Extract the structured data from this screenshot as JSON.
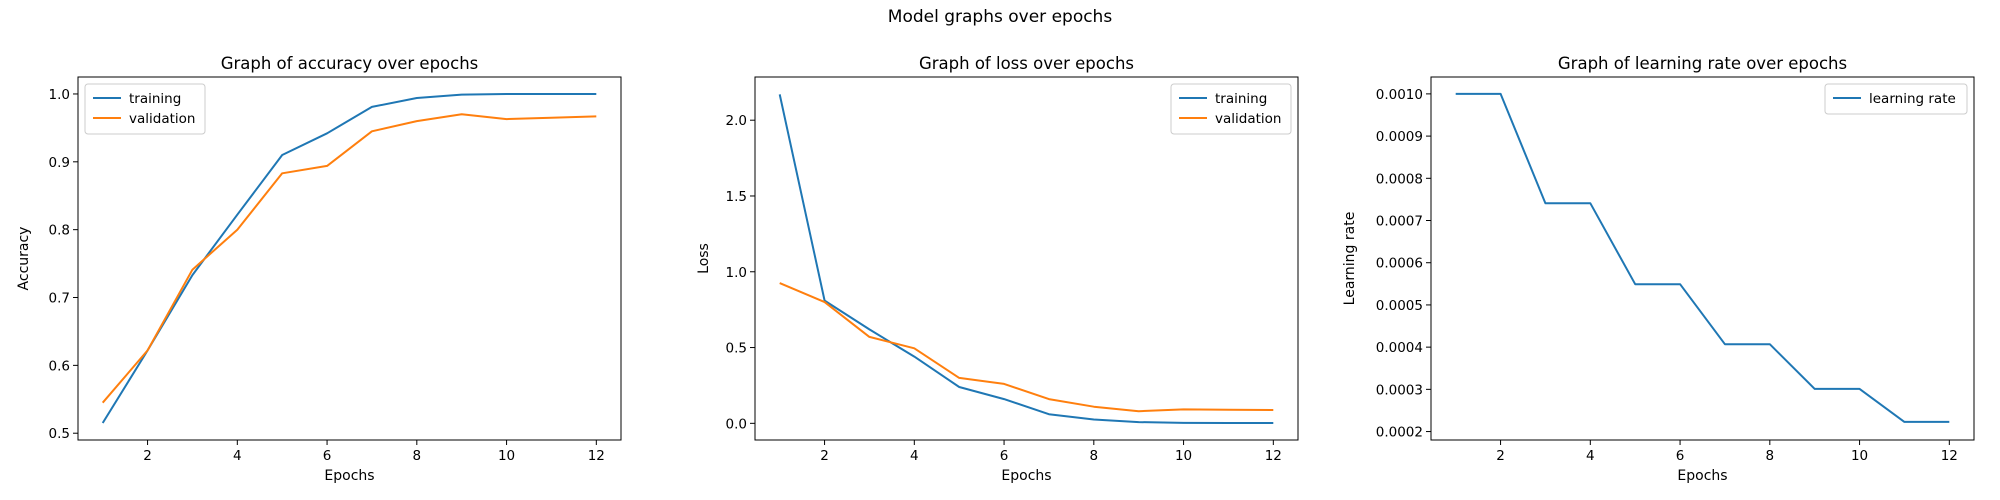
{
  "figure_title": "Model graphs over epochs",
  "colors": {
    "training": "#1f77b4",
    "validation": "#ff7f0e",
    "learning_rate": "#1f77b4"
  },
  "chart_data": [
    {
      "type": "line",
      "title": "Graph of accuracy over epochs",
      "xlabel": "Epochs",
      "ylabel": "Accuracy",
      "xlim": [
        0.45,
        12.55
      ],
      "ylim": [
        0.49,
        1.025
      ],
      "xticks": [
        2,
        4,
        6,
        8,
        10,
        12
      ],
      "yticks": [
        0.5,
        0.6,
        0.7,
        0.8,
        0.9,
        1.0
      ],
      "ytick_labels": [
        "0.5",
        "0.6",
        "0.7",
        "0.8",
        "0.9",
        "1.0"
      ],
      "legend": "top-left",
      "grid": false,
      "x": [
        1,
        2,
        3,
        4,
        5,
        6,
        7,
        8,
        9,
        10,
        11,
        12
      ],
      "series": [
        {
          "name": "training",
          "color": "#1f77b4",
          "values": [
            0.515,
            0.622,
            0.733,
            0.822,
            0.91,
            0.942,
            0.981,
            0.994,
            0.999,
            1.0,
            1.0,
            1.0
          ]
        },
        {
          "name": "validation",
          "color": "#ff7f0e",
          "values": [
            0.545,
            0.622,
            0.741,
            0.8,
            0.883,
            0.894,
            0.945,
            0.96,
            0.97,
            0.963,
            0.965,
            0.967
          ]
        }
      ]
    },
    {
      "type": "line",
      "title": "Graph of loss over epochs",
      "xlabel": "Epochs",
      "ylabel": "Loss",
      "xlim": [
        0.45,
        12.55
      ],
      "ylim": [
        -0.11,
        2.285
      ],
      "xticks": [
        2,
        4,
        6,
        8,
        10,
        12
      ],
      "yticks": [
        0.0,
        0.5,
        1.0,
        1.5,
        2.0
      ],
      "ytick_labels": [
        "0.0",
        "0.5",
        "1.0",
        "1.5",
        "2.0"
      ],
      "legend": "top-right",
      "grid": false,
      "x": [
        1,
        2,
        3,
        4,
        5,
        6,
        7,
        8,
        9,
        10,
        11,
        12
      ],
      "series": [
        {
          "name": "training",
          "color": "#1f77b4",
          "values": [
            2.17,
            0.81,
            0.62,
            0.44,
            0.24,
            0.16,
            0.06,
            0.025,
            0.008,
            0.003,
            0.002,
            0.002
          ]
        },
        {
          "name": "validation",
          "color": "#ff7f0e",
          "values": [
            0.925,
            0.8,
            0.57,
            0.495,
            0.3,
            0.26,
            0.16,
            0.11,
            0.08,
            0.092,
            0.09,
            0.088
          ]
        }
      ]
    },
    {
      "type": "line",
      "title": "Graph of learning rate over epochs",
      "xlabel": "Epochs",
      "ylabel": "Learning rate",
      "xlim": [
        0.45,
        12.55
      ],
      "ylim": [
        0.00018,
        0.00104
      ],
      "xticks": [
        2,
        4,
        6,
        8,
        10,
        12
      ],
      "yticks": [
        0.0002,
        0.0003,
        0.0004,
        0.0005,
        0.0006,
        0.0007,
        0.0008,
        0.0009,
        0.001
      ],
      "ytick_labels": [
        "0.0002",
        "0.0003",
        "0.0004",
        "0.0005",
        "0.0006",
        "0.0007",
        "0.0008",
        "0.0009",
        "0.0010"
      ],
      "legend": "top-right",
      "grid": false,
      "x": [
        1,
        2,
        3,
        4,
        5,
        6,
        7,
        8,
        9,
        10,
        11,
        12
      ],
      "series": [
        {
          "name": "learning rate",
          "color": "#1f77b4",
          "values": [
            0.001,
            0.001,
            0.000741,
            0.000741,
            0.000549,
            0.000549,
            0.000407,
            0.000407,
            0.000301,
            0.000301,
            0.000223,
            0.000223
          ]
        }
      ]
    }
  ]
}
